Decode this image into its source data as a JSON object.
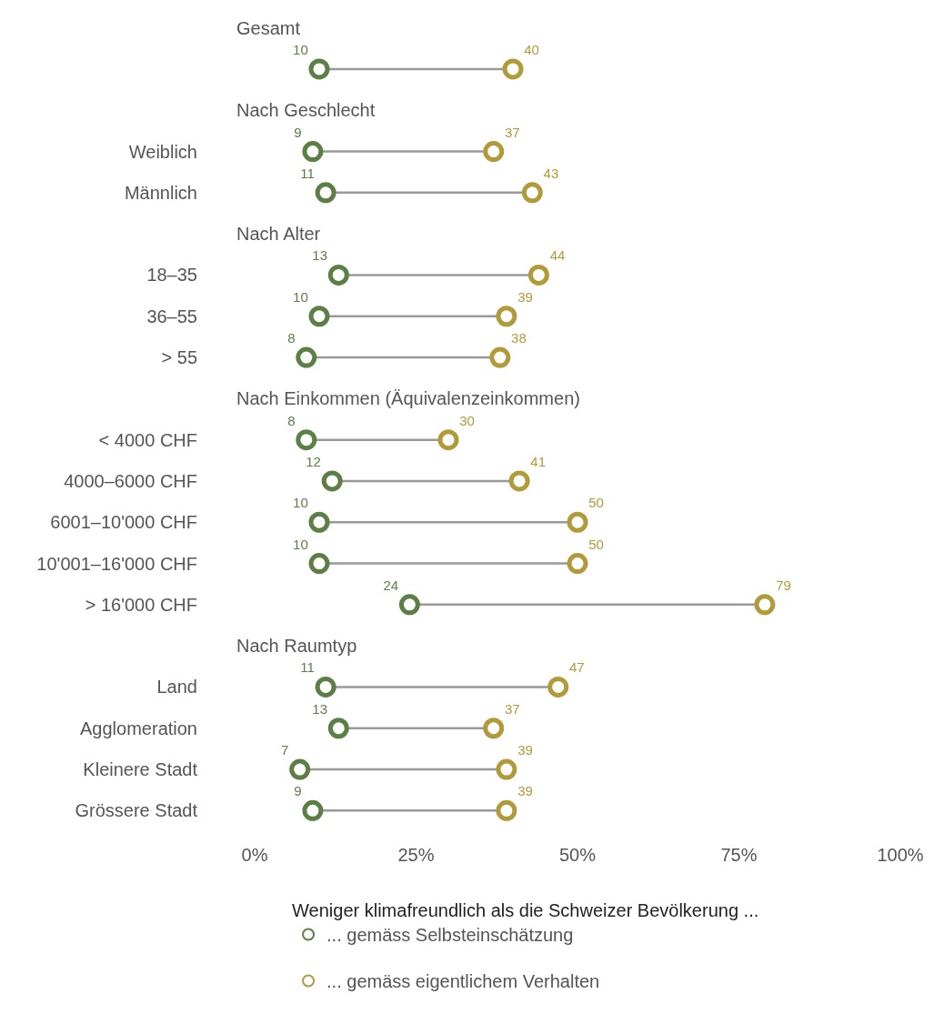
{
  "chart_data": {
    "type": "scatter",
    "categories": [
      "Gesamt",
      null,
      "Nach Geschlecht",
      "Weiblich",
      "Männlich",
      "Nach Alter",
      "18–35",
      "36–55",
      "> 55",
      "Nach Einkommen (Äquivalenzeinkommen)",
      "< 4000 CHF",
      "4000–6000 CHF",
      "6001–10'000 CHF",
      "10'001–16'000 CHF",
      "> 16'000 CHF",
      "Nach Raumtyp",
      "Land",
      "Agglomeration",
      "Kleinere Stadt",
      "Grössere Stadt"
    ],
    "series": [
      {
        "name": "... gemäss Selbsteinschätzung",
        "color": "#5b7f45",
        "values": [
          null,
          10,
          null,
          9,
          11,
          null,
          13,
          10,
          8,
          null,
          8,
          12,
          10,
          10,
          24,
          null,
          11,
          13,
          7,
          9
        ]
      },
      {
        "name": "... gemäss eigentlichem Verhalten",
        "color": "#b09a3a",
        "values": [
          null,
          40,
          null,
          37,
          43,
          null,
          44,
          39,
          38,
          null,
          30,
          41,
          50,
          50,
          79,
          null,
          47,
          37,
          39,
          39
        ]
      }
    ],
    "orientation": "horizontal",
    "xlim": [
      0,
      100
    ],
    "xticks": [
      {
        "value": 0,
        "label": "0%"
      },
      {
        "value": 25,
        "label": "25%"
      },
      {
        "value": 50,
        "label": "50%"
      },
      {
        "value": 75,
        "label": "75%"
      },
      {
        "value": 100,
        "label": "100%"
      }
    ],
    "legend_title": "Weniger klimafreundlich als die Schweizer Bevölkerung ...",
    "legend": "bottom",
    "marker": "circle",
    "data_labels": true
  }
}
